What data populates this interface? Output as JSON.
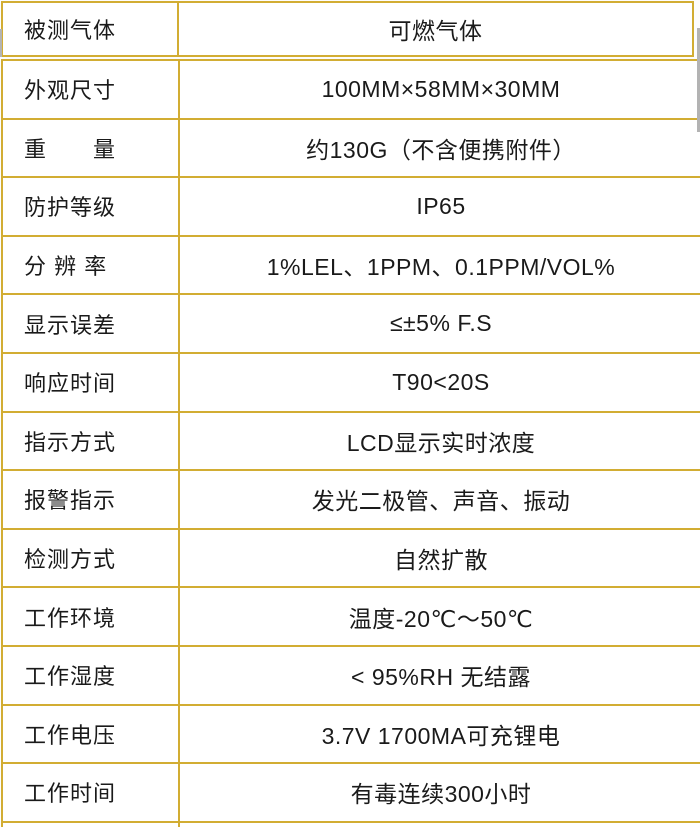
{
  "colors": {
    "border_gold": "#d2ad33",
    "text": "#1a1a1a",
    "background": "#ffffff",
    "edge_artifact_gray": "#b3b3b3"
  },
  "table": {
    "header": {
      "label": "被测气体",
      "value": "可燃气体"
    },
    "rows": [
      {
        "label": "外观尺寸",
        "value": "100MM×58MM×30MM"
      },
      {
        "label": "重　　量",
        "value": "约130G（不含便携附件）"
      },
      {
        "label": "防护等级",
        "value": "IP65"
      },
      {
        "label": "分 辨 率",
        "value": "1%LEL、1PPM、0.1PPM/VOL%"
      },
      {
        "label": "显示误差",
        "value": "≤±5% F.S"
      },
      {
        "label": "响应时间",
        "value": "T90<20S"
      },
      {
        "label": "指示方式",
        "value": "LCD显示实时浓度"
      },
      {
        "label": "报警指示",
        "value": "发光二极管、声音、振动"
      },
      {
        "label": "检测方式",
        "value": "自然扩散"
      },
      {
        "label": "工作环境",
        "value": "温度-20℃～50℃"
      },
      {
        "label": "工作湿度",
        "value": "< 95%RH 无结露"
      },
      {
        "label": "工作电压",
        "value": "3.7V 1700MA可充锂电"
      },
      {
        "label": "工作时间",
        "value": "有毒连续300小时"
      }
    ]
  }
}
